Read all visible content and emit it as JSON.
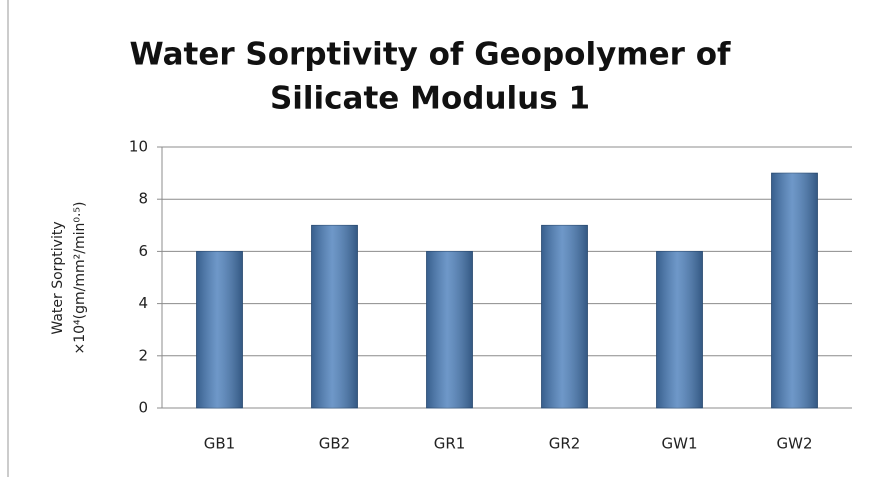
{
  "chart_data": {
    "type": "bar",
    "title": [
      "Water Sorptivity of Geopolymer of",
      "Silicate Modulus 1"
    ],
    "y_label": [
      "Water Sorptivity",
      "×10⁴(gm/mm²/min⁰·⁵)"
    ],
    "categories": [
      "GB1",
      "GB2",
      "GR1",
      "GR2",
      "GW1",
      "GW2"
    ],
    "values": [
      6,
      7,
      6,
      7,
      6,
      9
    ],
    "color": "#4a7ebb",
    "ylim": [
      0,
      10
    ],
    "yticks": [
      0,
      2,
      4,
      6,
      8,
      10
    ],
    "grid": true
  }
}
